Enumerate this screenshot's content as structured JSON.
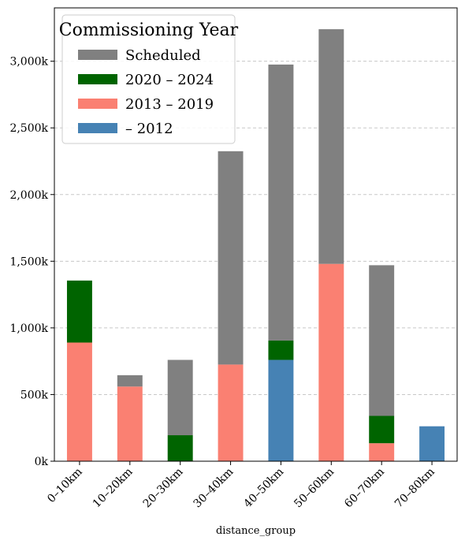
{
  "chart_data": {
    "type": "bar",
    "stacked": true,
    "categories": [
      "0–10km",
      "10–20km",
      "20–30km",
      "30–40km",
      "40–50km",
      "50–60km",
      "60–70km",
      "70–80km"
    ],
    "xlabel": "distance_group",
    "ylabel": "",
    "ylim": [
      0,
      3400
    ],
    "y_unit_suffix": "k",
    "yticks": [
      0,
      500,
      1000,
      1500,
      2000,
      2500,
      3000
    ],
    "ytick_labels": [
      "0k",
      "500k",
      "1,000k",
      "1,500k",
      "2,000k",
      "2,500k",
      "3,000k"
    ],
    "grid": {
      "y": true,
      "style": "dashed"
    },
    "legend": {
      "title": "Commissioning Year",
      "placement": "top-left",
      "entries": [
        "Scheduled",
        "2020 – 2024",
        "2013 – 2019",
        "– 2012"
      ]
    },
    "series": [
      {
        "name": "– 2012",
        "color": "#4682b4",
        "values": [
          0,
          0,
          0,
          0,
          760,
          0,
          0,
          262
        ]
      },
      {
        "name": "2013 – 2019",
        "color": "#fa8072",
        "values": [
          890,
          560,
          0,
          725,
          0,
          1480,
          135,
          0
        ]
      },
      {
        "name": "2020 – 2024",
        "color": "#006400",
        "values": [
          465,
          0,
          195,
          0,
          145,
          0,
          205,
          0
        ]
      },
      {
        "name": "Scheduled",
        "color": "#808080",
        "values": [
          0,
          85,
          565,
          1600,
          2070,
          1760,
          1130,
          0
        ]
      }
    ]
  }
}
